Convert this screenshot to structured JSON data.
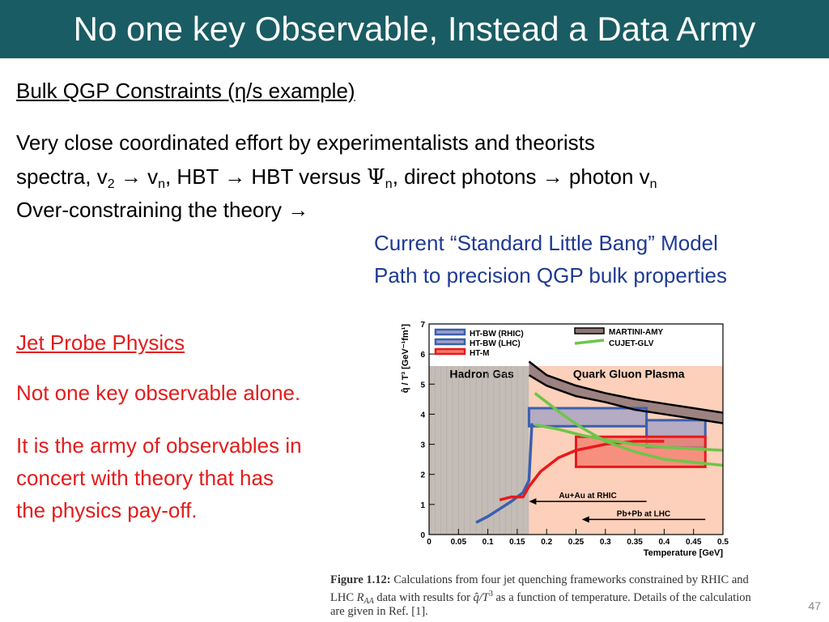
{
  "slide": {
    "title": "No one key Observable, Instead a Data Army",
    "bulk_heading": "Bulk QGP Constraints (η/s example)",
    "line1": "Very close coordinated effort by experimentalists and theorists",
    "line2": {
      "p1": "spectra, v",
      "s1": "2",
      "p2": " → v",
      "s2": "n",
      "p3": ", HBT → HBT versus ",
      "psi": "Ψ",
      "s3": "n",
      "p4": ", direct photons → photon v",
      "s4": "n"
    },
    "line3": "Over-constraining the theory →",
    "model1": "Current “Standard Little Bang” Model",
    "model2": "Path to precision QGP bulk properties",
    "jet_heading": "Jet Probe Physics",
    "jet1": "Not one key observable alone.",
    "jet2a": "It is the army of observables in",
    "jet2b": "concert with theory that has",
    "jet2c": "the physics pay-off.",
    "caption": {
      "label": "Figure 1.12:",
      "l1": "Calculations from four jet quenching frameworks constrained by RHIC and",
      "l2a": "LHC ",
      "raa": "R",
      "raa_sub": "AA",
      "l2b": " data with results for ",
      "qhat": "q̂/T",
      "qhat_sup": "3",
      "l2c": " as a function of temperature. Details of the calculation",
      "l3": "are given in Ref. [1]."
    },
    "page_number": "47"
  },
  "chart_data": {
    "type": "line",
    "xlabel": "Temperature [GeV]",
    "ylabel": "q̂ / T³ [GeV⁻¹fm¹]",
    "xlim": [
      0,
      0.5
    ],
    "ylim": [
      0,
      7
    ],
    "xticks": [
      "0",
      "0.05",
      "0.1",
      "0.15",
      "0.2",
      "0.25",
      "0.3",
      "0.35",
      "0.4",
      "0.45",
      "0.5"
    ],
    "yticks": [
      "0",
      "1",
      "2",
      "3",
      "4",
      "5",
      "6",
      "7"
    ],
    "regions": [
      {
        "label": "Hadron Gas",
        "x": [
          0,
          0.17
        ],
        "y": [
          0,
          5.6
        ],
        "color": "#c4bcb6"
      },
      {
        "label": "Quark Gluon Plasma",
        "x": [
          0.17,
          0.5
        ],
        "y": [
          0,
          5.6
        ],
        "color": "#fcd0ba"
      }
    ],
    "legend": [
      {
        "name": "HT-BW (RHIC)",
        "color": "#3a5fb0",
        "style": "box"
      },
      {
        "name": "HT-BW (LHC)",
        "color": "#3a5fb0",
        "style": "box"
      },
      {
        "name": "HT-M",
        "color": "#e8191b",
        "style": "box"
      },
      {
        "name": "MARTINI-AMY",
        "color": "#8b7476",
        "style": "band"
      },
      {
        "name": "CUJET-GLV",
        "color": "#6ec54a",
        "style": "line"
      }
    ],
    "series": [
      {
        "name": "HT-BW (RHIC)",
        "color": "#3a5fb0",
        "x": [
          0.08,
          0.1,
          0.12,
          0.14,
          0.16,
          0.17,
          0.175
        ],
        "y": [
          0.4,
          0.6,
          0.85,
          1.1,
          1.4,
          1.8,
          3.7
        ]
      },
      {
        "name": "HT-M",
        "color": "#e8191b",
        "x": [
          0.12,
          0.14,
          0.16,
          0.17,
          0.19,
          0.22,
          0.25,
          0.3,
          0.35,
          0.4
        ],
        "y": [
          1.15,
          1.25,
          1.25,
          1.6,
          2.1,
          2.55,
          2.8,
          3.0,
          3.1,
          3.1
        ]
      },
      {
        "name": "MARTINI-AMY upper",
        "color": "#000000",
        "x": [
          0.17,
          0.2,
          0.25,
          0.3,
          0.35,
          0.4,
          0.45,
          0.5
        ],
        "y": [
          5.75,
          5.3,
          4.95,
          4.7,
          4.5,
          4.35,
          4.2,
          4.05
        ]
      },
      {
        "name": "MARTINI-AMY lower",
        "color": "#000000",
        "x": [
          0.17,
          0.2,
          0.25,
          0.3,
          0.35,
          0.4,
          0.45,
          0.5
        ],
        "y": [
          5.3,
          4.95,
          4.6,
          4.4,
          4.15,
          4.0,
          3.85,
          3.7
        ]
      },
      {
        "name": "CUJET-GLV high",
        "color": "#6ec54a",
        "x": [
          0.18,
          0.2,
          0.23,
          0.26,
          0.3,
          0.35,
          0.4,
          0.45,
          0.5
        ],
        "y": [
          4.7,
          4.4,
          3.95,
          3.55,
          3.1,
          2.75,
          2.5,
          2.4,
          2.3
        ]
      },
      {
        "name": "CUJET-GLV low",
        "color": "#6ec54a",
        "x": [
          0.18,
          0.22,
          0.26,
          0.3,
          0.35,
          0.4,
          0.45,
          0.5
        ],
        "y": [
          3.65,
          3.5,
          3.3,
          3.15,
          3.0,
          2.9,
          2.85,
          2.8
        ]
      }
    ],
    "boxes": [
      {
        "name": "HT-BW (RHIC)",
        "x": [
          0.17,
          0.37
        ],
        "y": [
          3.6,
          4.2
        ],
        "color": "#3a5fb0",
        "fill": "#9e9fc4"
      },
      {
        "name": "HT-BW (LHC)",
        "x": [
          0.37,
          0.47
        ],
        "y": [
          2.9,
          3.8
        ],
        "color": "#3a5fb0",
        "fill": "#9e9fc4"
      },
      {
        "name": "HT-M",
        "x": [
          0.25,
          0.47
        ],
        "y": [
          2.25,
          3.25
        ],
        "color": "#e8191b",
        "fill": "#f47a6a"
      }
    ],
    "annotations": [
      {
        "text": "Au+Au at RHIC",
        "x1": 0.37,
        "x2": 0.17,
        "y": 1.1
      },
      {
        "text": "Pb+Pb at LHC",
        "x1": 0.47,
        "x2": 0.26,
        "y": 0.5
      }
    ]
  }
}
